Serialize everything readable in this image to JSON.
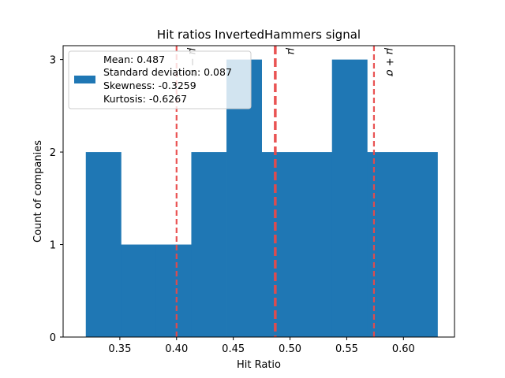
{
  "chart_data": {
    "type": "bar",
    "title": "Hit ratios InvertedHammers signal",
    "xlabel": "Hit Ratio",
    "ylabel": "Count of companies",
    "xlim": [
      0.3,
      0.645
    ],
    "ylim": [
      0,
      3.15
    ],
    "xticks": [
      {
        "value": 0.35,
        "label": "0.35"
      },
      {
        "value": 0.4,
        "label": "0.40"
      },
      {
        "value": 0.45,
        "label": "0.45"
      },
      {
        "value": 0.5,
        "label": "0.50"
      },
      {
        "value": 0.55,
        "label": "0.55"
      },
      {
        "value": 0.6,
        "label": "0.60"
      }
    ],
    "yticks": [
      {
        "value": 0,
        "label": "0"
      },
      {
        "value": 1,
        "label": "1"
      },
      {
        "value": 2,
        "label": "2"
      },
      {
        "value": 3,
        "label": "3"
      }
    ],
    "bins": [
      {
        "start": 0.32,
        "end": 0.351,
        "count": 2
      },
      {
        "start": 0.351,
        "end": 0.382,
        "count": 1
      },
      {
        "start": 0.382,
        "end": 0.413,
        "count": 1
      },
      {
        "start": 0.413,
        "end": 0.444,
        "count": 2
      },
      {
        "start": 0.444,
        "end": 0.475,
        "count": 3
      },
      {
        "start": 0.475,
        "end": 0.506,
        "count": 2
      },
      {
        "start": 0.506,
        "end": 0.537,
        "count": 2
      },
      {
        "start": 0.537,
        "end": 0.568,
        "count": 3
      },
      {
        "start": 0.568,
        "end": 0.599,
        "count": 2
      },
      {
        "start": 0.599,
        "end": 0.63,
        "count": 2
      }
    ],
    "bar_color": "#1f77b4",
    "reference_lines": [
      {
        "value": 0.4,
        "label": "μ − σ",
        "color": "#e84a4a",
        "emphasis": "normal"
      },
      {
        "value": 0.487,
        "label": "μ",
        "color": "#e84a4a",
        "emphasis": "bold"
      },
      {
        "value": 0.574,
        "label": "μ + σ",
        "color": "#e84a4a",
        "emphasis": "normal"
      }
    ],
    "legend": {
      "placement": "top-left",
      "lines": [
        "Mean: 0.487",
        "Standard deviation: 0.087",
        "Skewness: -0.3259",
        "Kurtosis: -0.6267"
      ]
    }
  }
}
